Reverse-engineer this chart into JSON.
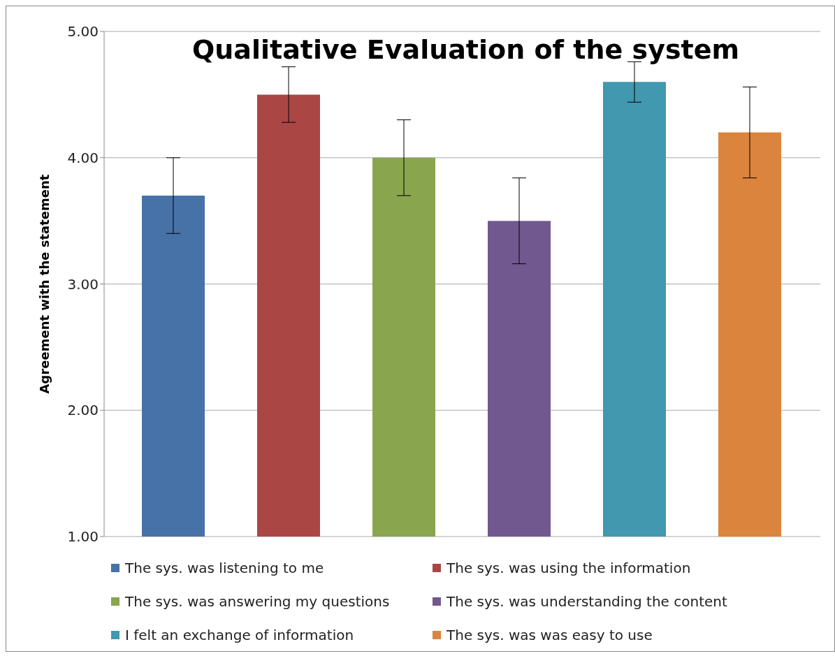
{
  "chart_data": {
    "type": "bar",
    "title": "Qualitative Evaluation of the system",
    "ylabel": "Agreement with the statement",
    "categories": [
      null
    ],
    "series": [
      {
        "name": "The sys. was listening to me",
        "color": "#4672a8",
        "values": [
          3.7
        ],
        "errors": [
          0.3
        ]
      },
      {
        "name": "The sys. was using the information",
        "color": "#aa4644",
        "values": [
          4.5
        ],
        "errors": [
          0.22
        ]
      },
      {
        "name": "The sys. was answering my questions",
        "color": "#89a54e",
        "values": [
          4.0
        ],
        "errors": [
          0.3
        ]
      },
      {
        "name": "The sys. was understanding the content",
        "color": "#71588f",
        "values": [
          3.5
        ],
        "errors": [
          0.34
        ]
      },
      {
        "name": "I felt an exchange of information",
        "color": "#4198af",
        "values": [
          4.6
        ],
        "errors": [
          0.16
        ]
      },
      {
        "name": "The sys. was was easy to use",
        "color": "#db843d",
        "values": [
          4.2
        ],
        "errors": [
          0.36
        ]
      }
    ],
    "ylim": [
      1,
      5
    ],
    "yticks": [
      {
        "value": 1,
        "label": "1.00"
      },
      {
        "value": 2,
        "label": "2.00"
      },
      {
        "value": 3,
        "label": "3.00"
      },
      {
        "value": 4,
        "label": "4.00"
      },
      {
        "value": 5,
        "label": "5.00"
      }
    ],
    "grid": "y",
    "legend": "bottom"
  }
}
